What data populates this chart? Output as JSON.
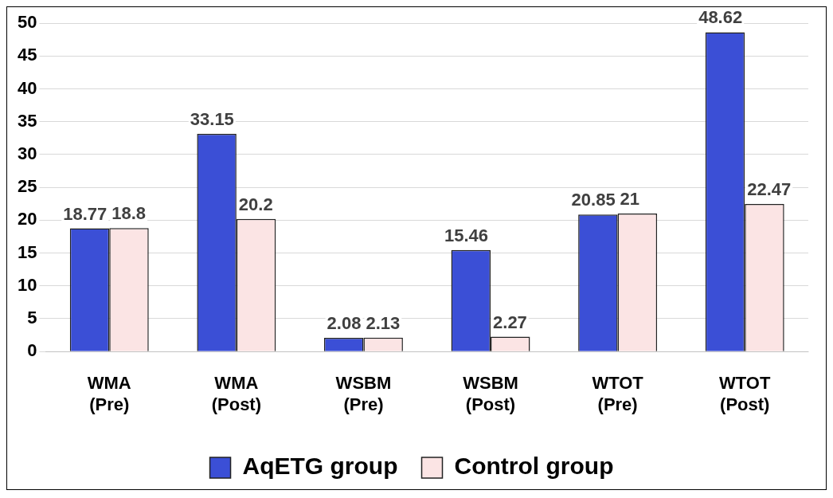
{
  "chart_data": {
    "type": "bar",
    "categories": [
      "WMA\n(Pre)",
      "WMA\n(Post)",
      "WSBM\n(Pre)",
      "WSBM\n(Post)",
      "WTOT\n(Pre)",
      "WTOT\n(Post)"
    ],
    "series": [
      {
        "name": "AqETG group",
        "color": "#3b4fd6",
        "values": [
          18.77,
          33.15,
          2.08,
          15.46,
          20.85,
          48.62
        ]
      },
      {
        "name": "Control group",
        "color": "#fbe4e4",
        "values": [
          18.8,
          20.2,
          2.13,
          2.27,
          21,
          22.47
        ]
      }
    ],
    "ylim": [
      0,
      50
    ],
    "yticks": [
      0,
      5,
      10,
      15,
      20,
      25,
      30,
      35,
      40,
      45,
      50
    ],
    "grid": "y",
    "legend": "bottom",
    "data_labels": true
  }
}
